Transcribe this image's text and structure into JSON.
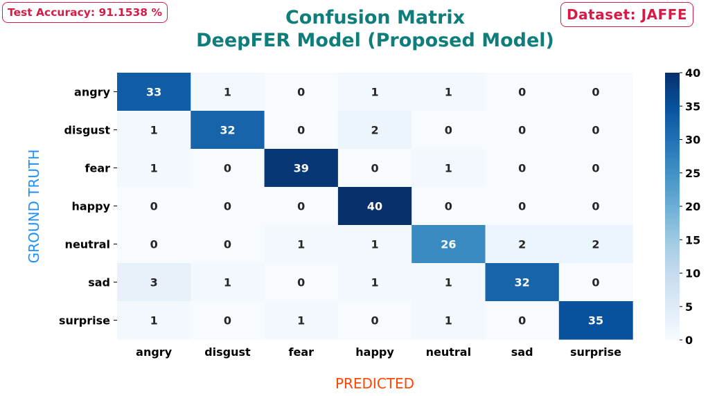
{
  "badges": {
    "accuracy": "Test Accuracy: 91.1538 %",
    "dataset": "Dataset: JAFFE"
  },
  "colors": {
    "badge": "#d81b46",
    "title": "#0f7e7a",
    "ylabel": "#1e90ff",
    "xlabel": "#ff4500",
    "cmap_low": "#f7fbff",
    "cmap_high": "#08306b"
  },
  "chart_data": {
    "type": "heatmap",
    "title": "Confusion Matrix",
    "subtitle": "DeepFER Model (Proposed Model)",
    "xlabel": "PREDICTED",
    "ylabel": "GROUND TRUTH",
    "x_categories": [
      "angry",
      "disgust",
      "fear",
      "happy",
      "neutral",
      "sad",
      "surprise"
    ],
    "y_categories": [
      "angry",
      "disgust",
      "fear",
      "happy",
      "neutral",
      "sad",
      "surprise"
    ],
    "values": [
      [
        33,
        1,
        0,
        1,
        1,
        0,
        0
      ],
      [
        1,
        32,
        0,
        2,
        0,
        0,
        0
      ],
      [
        1,
        0,
        39,
        0,
        1,
        0,
        0
      ],
      [
        0,
        0,
        0,
        40,
        0,
        0,
        0
      ],
      [
        0,
        0,
        1,
        1,
        26,
        2,
        2
      ],
      [
        3,
        1,
        0,
        1,
        1,
        32,
        0
      ],
      [
        1,
        0,
        1,
        0,
        1,
        0,
        35
      ]
    ],
    "colorbar": {
      "vmin": 0,
      "vmax": 40,
      "ticks": [
        0,
        5,
        10,
        15,
        20,
        25,
        30,
        35,
        40
      ]
    },
    "colormap": "Blues"
  }
}
